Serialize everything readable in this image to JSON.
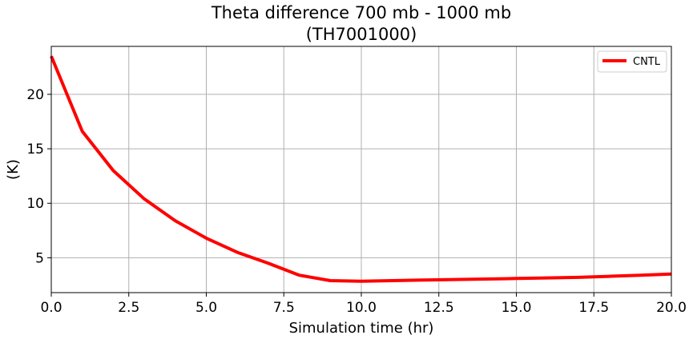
{
  "chart_data": {
    "type": "line",
    "title": "Theta difference 700 mb - 1000 mb",
    "subtitle": "(TH7001000)",
    "xlabel": "Simulation time (hr)",
    "ylabel": "(K)",
    "xlim": [
      0,
      20
    ],
    "ylim": [
      1.8,
      24.4
    ],
    "xticks": [
      0,
      2.5,
      5,
      7.5,
      10,
      12.5,
      15,
      17.5,
      20
    ],
    "xtick_labels": [
      "0.0",
      "2.5",
      "5.0",
      "7.5",
      "10.0",
      "12.5",
      "15.0",
      "17.5",
      "20.0"
    ],
    "yticks": [
      5,
      10,
      15,
      20
    ],
    "ytick_labels": [
      "5",
      "10",
      "15",
      "20"
    ],
    "grid": true,
    "legend_position": "top-right",
    "series": [
      {
        "name": "CNTL",
        "color": "#ff0000",
        "x": [
          0,
          1,
          2,
          3,
          4,
          5,
          6,
          7,
          8,
          9,
          10,
          11,
          12,
          13,
          14,
          15,
          16,
          17,
          18,
          19,
          20
        ],
        "values": [
          23.5,
          16.6,
          13.0,
          10.4,
          8.4,
          6.8,
          5.5,
          4.5,
          3.4,
          2.9,
          2.85,
          2.9,
          2.95,
          3.0,
          3.05,
          3.1,
          3.15,
          3.2,
          3.3,
          3.4,
          3.5
        ]
      }
    ]
  }
}
